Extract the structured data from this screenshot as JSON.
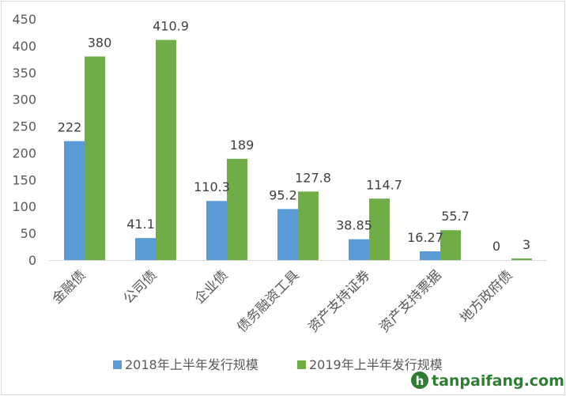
{
  "chart_data": {
    "type": "bar",
    "categories": [
      "金融债",
      "公司债",
      "企业债",
      "债务融资工具",
      "资产支持证券",
      "资产支持票据",
      "地方政府债"
    ],
    "series": [
      {
        "name": "2018年上半年发行规模",
        "color": "#5b9bd5",
        "values": [
          222,
          41.1,
          110.3,
          95.2,
          38.85,
          16.27,
          0
        ]
      },
      {
        "name": "2019年上半年发行规模",
        "color": "#70ad47",
        "values": [
          380,
          410.9,
          189,
          127.8,
          114.7,
          55.7,
          3
        ]
      }
    ],
    "ylim": [
      0,
      450
    ],
    "yticks": [
      0,
      50,
      100,
      150,
      200,
      250,
      300,
      350,
      400,
      450
    ],
    "grid": false,
    "legend_position": "bottom"
  },
  "watermark": {
    "badge": "h",
    "text": "tanpaifang.com",
    "color": "#2e7d32"
  }
}
